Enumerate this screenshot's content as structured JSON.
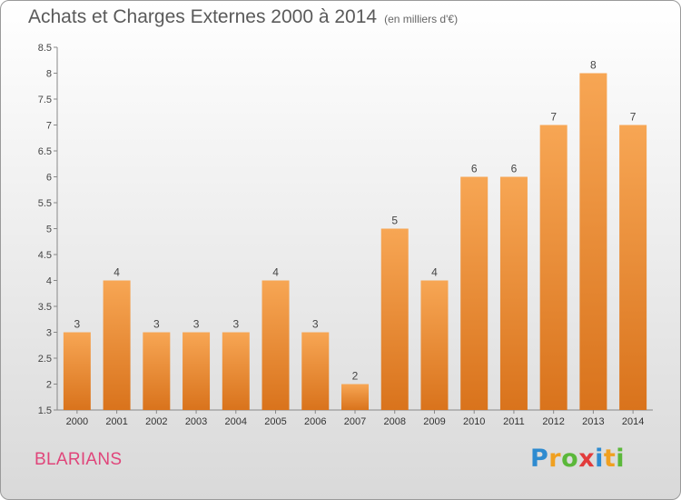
{
  "header": {
    "title": "Achats et Charges Externes 2000 à 2014",
    "unit": "(en milliers d'€)"
  },
  "place": "BLARIANS",
  "logo": {
    "text": "Proxiti",
    "letters": [
      "P",
      "r",
      "o",
      "x",
      "i",
      "t",
      "i"
    ],
    "colors": [
      "#2e8bd0",
      "#f0a020",
      "#5bb83a",
      "#e23c3c",
      "#2e8bd0",
      "#f0a020",
      "#5bb83a"
    ]
  },
  "chart_data": {
    "type": "bar",
    "title": "Achats et Charges Externes 2000 à 2014",
    "subtitle": "(en milliers d'€)",
    "categories": [
      "2000",
      "2001",
      "2002",
      "2003",
      "2004",
      "2005",
      "2006",
      "2007",
      "2008",
      "2009",
      "2010",
      "2011",
      "2012",
      "2013",
      "2014"
    ],
    "values": [
      3,
      4,
      3,
      3,
      3,
      4,
      3,
      2,
      5,
      4,
      6,
      6,
      7,
      8,
      7
    ],
    "ylim": [
      1.5,
      8.5
    ],
    "yticks": [
      1.5,
      2,
      2.5,
      3,
      3.5,
      4,
      4.5,
      5,
      5.5,
      6,
      6.5,
      7,
      7.5,
      8,
      8.5
    ],
    "grid": false,
    "bar_color": "#f0913a",
    "data_labels": true
  }
}
